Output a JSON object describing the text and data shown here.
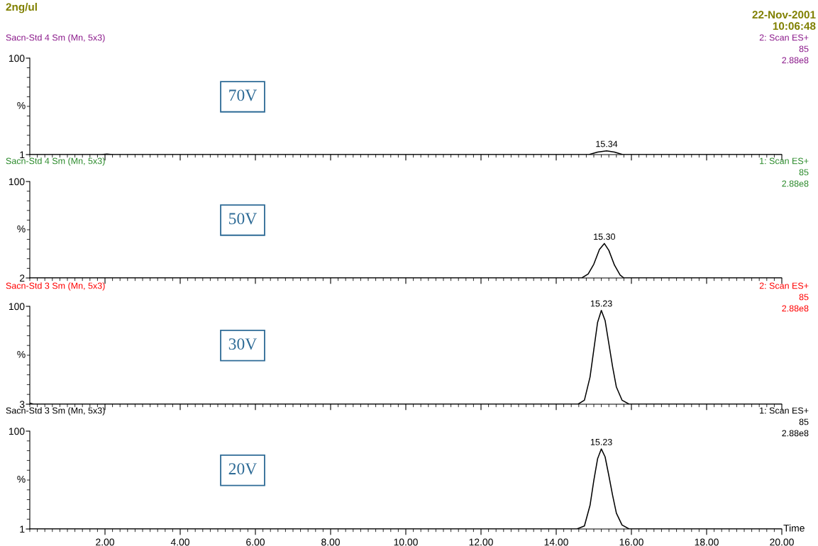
{
  "chart_data": [
    {
      "type": "line",
      "title": "2ng/ul",
      "subtitle": "Sacn-Std 4 Sm (Mn, 5x3)",
      "ylabel": "%",
      "annotations": [
        "22-Nov-2001",
        "10:06:48",
        "2: Scan ES+",
        "85",
        "2.88e8",
        "70V",
        {
          "text": "15.34",
          "x": 15.34,
          "y": 4.9
        }
      ],
      "series": [
        {
          "color": "#000000",
          "x": [
            0,
            1.9,
            2.05,
            2.2,
            14.87,
            15.1,
            15.34,
            15.55,
            15.77,
            20
          ],
          "values": [
            1,
            1,
            1.5,
            1,
            1,
            3.5,
            4.9,
            3.5,
            1,
            1
          ]
        }
      ],
      "xlim": [
        0,
        20
      ],
      "ylim": [
        1,
        100
      ],
      "yticks": [
        1,
        100
      ],
      "tick_labels": "y",
      "grid": false,
      "legend": false
    },
    {
      "type": "line",
      "subtitle": "Sacn-Std 4 Sm (Mn, 5x3)",
      "ylabel": "%",
      "annotations": [
        "1: Scan ES+",
        "85",
        "2.88e8",
        "50V",
        {
          "text": "15.30",
          "x": 15.28,
          "y": 37
        }
      ],
      "series": [
        {
          "color": "#000000",
          "x": [
            0,
            14.68,
            14.85,
            15.0,
            15.15,
            15.28,
            15.4,
            15.55,
            15.7,
            15.8,
            20
          ],
          "values": [
            2,
            2,
            6,
            16,
            31,
            37,
            30,
            15,
            5,
            2,
            2
          ]
        }
      ],
      "xlim": [
        0,
        20
      ],
      "ylim": [
        2,
        100
      ],
      "yticks": [
        2,
        100
      ],
      "tick_labels": "y",
      "grid": false,
      "legend": false
    },
    {
      "type": "line",
      "subtitle": "Sacn-Std 3 Sm (Mn, 5x3)",
      "ylabel": "%",
      "annotations": [
        "2: Scan ES+",
        "85",
        "2.88e8",
        "30V",
        {
          "text": "15.23",
          "x": 15.2,
          "y": 96
        }
      ],
      "series": [
        {
          "color": "#000000",
          "x": [
            0,
            0.1,
            14.58,
            14.75,
            14.9,
            15.0,
            15.1,
            15.2,
            15.3,
            15.4,
            15.5,
            15.6,
            15.75,
            15.94,
            20
          ],
          "values": [
            4,
            3,
            3,
            7,
            30,
            57,
            84,
            96,
            86,
            63,
            40,
            20,
            7,
            3,
            3
          ]
        }
      ],
      "xlim": [
        0,
        20
      ],
      "ylim": [
        3,
        100
      ],
      "yticks": [
        3,
        100
      ],
      "tick_labels": "y",
      "grid": false,
      "legend": false
    },
    {
      "type": "line",
      "subtitle": "Sacn-Std 3 Sm (Mn, 5x3)",
      "ylabel": "%",
      "xlabel": "Time",
      "annotations": [
        "1: Scan ES+",
        "85",
        "2.88e8",
        "20V",
        {
          "text": "15.23",
          "x": 15.2,
          "y": 82
        }
      ],
      "series": [
        {
          "color": "#000000",
          "x": [
            0,
            14.55,
            14.75,
            14.9,
            15.0,
            15.1,
            15.2,
            15.3,
            15.4,
            15.5,
            15.6,
            15.75,
            15.94,
            20
          ],
          "values": [
            1,
            1,
            4,
            25,
            50,
            72,
            82,
            74,
            55,
            35,
            17,
            5,
            1,
            1
          ]
        }
      ],
      "xlim": [
        0,
        20
      ],
      "ylim": [
        1,
        100
      ],
      "yticks": [
        1,
        100
      ],
      "xticks": [
        {
          "value": 2,
          "label": "2.00"
        },
        {
          "value": 4,
          "label": "4.00"
        },
        {
          "value": 6,
          "label": "6.00"
        },
        {
          "value": 8,
          "label": "8.00"
        },
        {
          "value": 10,
          "label": "10.00"
        },
        {
          "value": 12,
          "label": "12.00"
        },
        {
          "value": 14,
          "label": "14.00"
        },
        {
          "value": 16,
          "label": "16.00"
        },
        {
          "value": 18,
          "label": "18.00"
        },
        {
          "value": 20,
          "label": "20.00"
        }
      ],
      "grid": false,
      "legend": false
    }
  ]
}
